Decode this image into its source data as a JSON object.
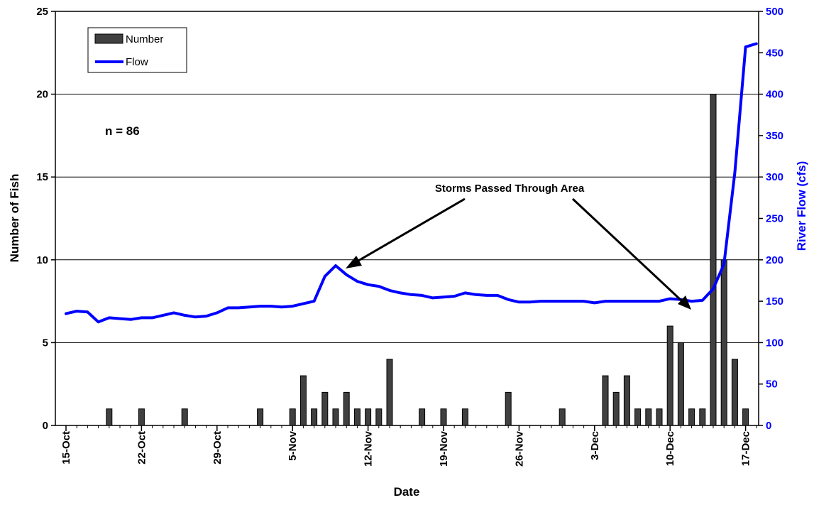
{
  "chart_data": {
    "type": "bar+line",
    "xlabel": "Date",
    "ylabel_left": "Number of Fish",
    "ylabel_right": "River Flow (cfs)",
    "ylim_left": [
      0,
      25
    ],
    "ylim_right": [
      0,
      500
    ],
    "left_ticks": [
      0,
      5,
      10,
      15,
      20,
      25
    ],
    "right_ticks": [
      0,
      50,
      100,
      150,
      200,
      250,
      300,
      350,
      400,
      450,
      500
    ],
    "grid": "horizontal",
    "legend_position": "top-left",
    "legend": [
      {
        "label": "Number",
        "kind": "bar"
      },
      {
        "label": "Flow",
        "kind": "line"
      }
    ],
    "annotations": {
      "n": "n = 86",
      "storms": "Storms Passed Through Area"
    },
    "x_tick_labels": [
      {
        "label": "15-Oct",
        "day": 0
      },
      {
        "label": "22-Oct",
        "day": 7
      },
      {
        "label": "29-Oct",
        "day": 14
      },
      {
        "label": "5-Nov",
        "day": 21
      },
      {
        "label": "12-Nov",
        "day": 28
      },
      {
        "label": "19-Nov",
        "day": 35
      },
      {
        "label": "26-Nov",
        "day": 42
      },
      {
        "label": "3-Dec",
        "day": 49
      },
      {
        "label": "10-Dec",
        "day": 56
      },
      {
        "label": "17-Dec",
        "day": 63
      }
    ],
    "x_start": "15-Oct",
    "x_end": "18-Dec",
    "bars": [
      {
        "day": 4,
        "value": 1
      },
      {
        "day": 7,
        "value": 1
      },
      {
        "day": 11,
        "value": 1
      },
      {
        "day": 18,
        "value": 1
      },
      {
        "day": 21,
        "value": 1
      },
      {
        "day": 22,
        "value": 3
      },
      {
        "day": 23,
        "value": 1
      },
      {
        "day": 24,
        "value": 2
      },
      {
        "day": 25,
        "value": 1
      },
      {
        "day": 26,
        "value": 2
      },
      {
        "day": 27,
        "value": 1
      },
      {
        "day": 28,
        "value": 1
      },
      {
        "day": 29,
        "value": 1
      },
      {
        "day": 30,
        "value": 4
      },
      {
        "day": 33,
        "value": 1
      },
      {
        "day": 35,
        "value": 1
      },
      {
        "day": 37,
        "value": 1
      },
      {
        "day": 41,
        "value": 2
      },
      {
        "day": 46,
        "value": 1
      },
      {
        "day": 50,
        "value": 3
      },
      {
        "day": 51,
        "value": 2
      },
      {
        "day": 52,
        "value": 3
      },
      {
        "day": 53,
        "value": 1
      },
      {
        "day": 54,
        "value": 1
      },
      {
        "day": 55,
        "value": 1
      },
      {
        "day": 56,
        "value": 6
      },
      {
        "day": 57,
        "value": 5
      },
      {
        "day": 58,
        "value": 1
      },
      {
        "day": 59,
        "value": 1
      },
      {
        "day": 60,
        "value": 20
      },
      {
        "day": 61,
        "value": 10
      },
      {
        "day": 62,
        "value": 4
      },
      {
        "day": 63,
        "value": 1
      }
    ],
    "flow": [
      [
        0,
        135
      ],
      [
        1,
        138
      ],
      [
        2,
        137
      ],
      [
        3,
        125
      ],
      [
        4,
        130
      ],
      [
        5,
        129
      ],
      [
        6,
        128
      ],
      [
        7,
        130
      ],
      [
        8,
        130
      ],
      [
        9,
        133
      ],
      [
        10,
        136
      ],
      [
        11,
        133
      ],
      [
        12,
        131
      ],
      [
        13,
        132
      ],
      [
        14,
        136
      ],
      [
        15,
        142
      ],
      [
        16,
        142
      ],
      [
        17,
        143
      ],
      [
        18,
        144
      ],
      [
        19,
        144
      ],
      [
        20,
        143
      ],
      [
        21,
        144
      ],
      [
        22,
        147
      ],
      [
        23,
        150
      ],
      [
        24,
        180
      ],
      [
        25,
        193
      ],
      [
        26,
        182
      ],
      [
        27,
        174
      ],
      [
        28,
        170
      ],
      [
        29,
        168
      ],
      [
        30,
        163
      ],
      [
        31,
        160
      ],
      [
        32,
        158
      ],
      [
        33,
        157
      ],
      [
        34,
        154
      ],
      [
        35,
        155
      ],
      [
        36,
        156
      ],
      [
        37,
        160
      ],
      [
        38,
        158
      ],
      [
        39,
        157
      ],
      [
        40,
        157
      ],
      [
        41,
        152
      ],
      [
        42,
        149
      ],
      [
        43,
        149
      ],
      [
        44,
        150
      ],
      [
        45,
        150
      ],
      [
        46,
        150
      ],
      [
        47,
        150
      ],
      [
        48,
        150
      ],
      [
        49,
        148
      ],
      [
        50,
        150
      ],
      [
        51,
        150
      ],
      [
        52,
        150
      ],
      [
        53,
        150
      ],
      [
        54,
        150
      ],
      [
        55,
        150
      ],
      [
        56,
        153
      ],
      [
        57,
        152
      ],
      [
        58,
        150
      ],
      [
        59,
        151
      ],
      [
        60,
        165
      ],
      [
        61,
        195
      ],
      [
        62,
        305
      ],
      [
        63,
        457
      ],
      [
        64,
        461
      ]
    ]
  }
}
